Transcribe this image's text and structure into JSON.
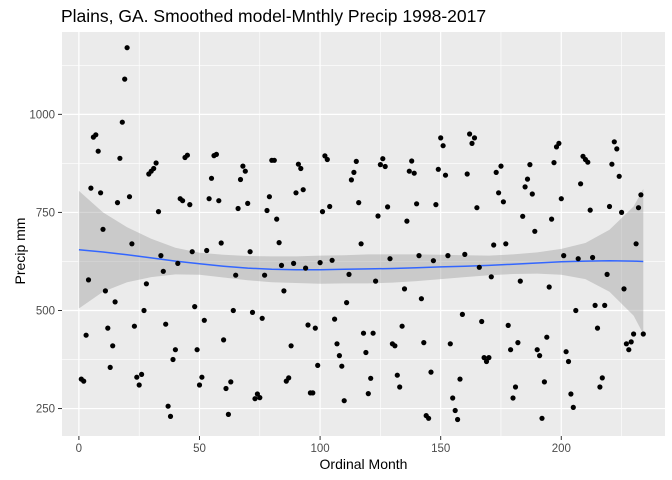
{
  "chart_data": {
    "type": "scatter",
    "title": "Plains, GA. Smoothed model-Mnthly Precip 1998-2017",
    "xlabel": "Ordinal Month",
    "ylabel": "Precip mm",
    "xlim": [
      -7,
      243
    ],
    "ylim": [
      180,
      1210
    ],
    "x_ticks": [
      0,
      50,
      100,
      150,
      200
    ],
    "y_ticks": [
      250,
      500,
      750,
      1000
    ],
    "x_tick_labels": [
      "0",
      "50",
      "100",
      "150",
      "200"
    ],
    "y_tick_labels": [
      "250",
      "500",
      "750",
      "1000"
    ],
    "grid": true,
    "colors": {
      "panel": "#ebebeb",
      "grid": "#ffffff",
      "points": "#000000",
      "smooth": "#3366ff",
      "ribbon": "#999999"
    },
    "points": [
      [
        1,
        325
      ],
      [
        2,
        320
      ],
      [
        3,
        437
      ],
      [
        4,
        578
      ],
      [
        5,
        812
      ],
      [
        6,
        942
      ],
      [
        7,
        948
      ],
      [
        8,
        906
      ],
      [
        9,
        800
      ],
      [
        10,
        707
      ],
      [
        11,
        550
      ],
      [
        12,
        455
      ],
      [
        13,
        355
      ],
      [
        14,
        410
      ],
      [
        15,
        522
      ],
      [
        16,
        775
      ],
      [
        17,
        888
      ],
      [
        18,
        980
      ],
      [
        19,
        1090
      ],
      [
        20,
        1170
      ],
      [
        21,
        790
      ],
      [
        22,
        670
      ],
      [
        23,
        460
      ],
      [
        24,
        330
      ],
      [
        25,
        310
      ],
      [
        26,
        337
      ],
      [
        27,
        500
      ],
      [
        28,
        568
      ],
      [
        29,
        848
      ],
      [
        30,
        855
      ],
      [
        31,
        862
      ],
      [
        32,
        876
      ],
      [
        33,
        752
      ],
      [
        34,
        640
      ],
      [
        35,
        600
      ],
      [
        36,
        465
      ],
      [
        37,
        256
      ],
      [
        38,
        230
      ],
      [
        39,
        375
      ],
      [
        40,
        400
      ],
      [
        41,
        620
      ],
      [
        42,
        785
      ],
      [
        43,
        780
      ],
      [
        44,
        890
      ],
      [
        45,
        896
      ],
      [
        46,
        770
      ],
      [
        47,
        650
      ],
      [
        48,
        510
      ],
      [
        49,
        400
      ],
      [
        50,
        310
      ],
      [
        51,
        330
      ],
      [
        52,
        475
      ],
      [
        53,
        653
      ],
      [
        54,
        785
      ],
      [
        55,
        837
      ],
      [
        56,
        895
      ],
      [
        57,
        898
      ],
      [
        58,
        780
      ],
      [
        59,
        672
      ],
      [
        60,
        425
      ],
      [
        61,
        301
      ],
      [
        62,
        235
      ],
      [
        63,
        318
      ],
      [
        64,
        500
      ],
      [
        65,
        590
      ],
      [
        66,
        760
      ],
      [
        67,
        834
      ],
      [
        68,
        868
      ],
      [
        69,
        855
      ],
      [
        70,
        773
      ],
      [
        71,
        650
      ],
      [
        72,
        495
      ],
      [
        73,
        275
      ],
      [
        74,
        287
      ],
      [
        75,
        278
      ],
      [
        76,
        480
      ],
      [
        77,
        590
      ],
      [
        78,
        755
      ],
      [
        79,
        790
      ],
      [
        80,
        883
      ],
      [
        81,
        883
      ],
      [
        82,
        733
      ],
      [
        83,
        673
      ],
      [
        84,
        615
      ],
      [
        85,
        550
      ],
      [
        86,
        320
      ],
      [
        87,
        328
      ],
      [
        88,
        410
      ],
      [
        89,
        620
      ],
      [
        90,
        800
      ],
      [
        91,
        873
      ],
      [
        92,
        862
      ],
      [
        93,
        808
      ],
      [
        94,
        608
      ],
      [
        95,
        463
      ],
      [
        96,
        290
      ],
      [
        97,
        290
      ],
      [
        98,
        455
      ],
      [
        99,
        360
      ],
      [
        100,
        622
      ],
      [
        101,
        752
      ],
      [
        102,
        894
      ],
      [
        103,
        885
      ],
      [
        104,
        765
      ],
      [
        105,
        628
      ],
      [
        106,
        478
      ],
      [
        107,
        415
      ],
      [
        108,
        385
      ],
      [
        109,
        358
      ],
      [
        110,
        270
      ],
      [
        111,
        520
      ],
      [
        112,
        592
      ],
      [
        113,
        833
      ],
      [
        114,
        852
      ],
      [
        115,
        880
      ],
      [
        116,
        775
      ],
      [
        117,
        670
      ],
      [
        118,
        442
      ],
      [
        119,
        393
      ],
      [
        120,
        288
      ],
      [
        121,
        327
      ],
      [
        122,
        442
      ],
      [
        123,
        575
      ],
      [
        124,
        741
      ],
      [
        125,
        872
      ],
      [
        126,
        887
      ],
      [
        127,
        867
      ],
      [
        128,
        764
      ],
      [
        129,
        632
      ],
      [
        130,
        415
      ],
      [
        131,
        410
      ],
      [
        132,
        335
      ],
      [
        133,
        305
      ],
      [
        134,
        460
      ],
      [
        135,
        555
      ],
      [
        136,
        728
      ],
      [
        137,
        855
      ],
      [
        138,
        881
      ],
      [
        139,
        850
      ],
      [
        140,
        772
      ],
      [
        141,
        640
      ],
      [
        142,
        530
      ],
      [
        143,
        418
      ],
      [
        144,
        232
      ],
      [
        145,
        225
      ],
      [
        146,
        343
      ],
      [
        147,
        627
      ],
      [
        148,
        770
      ],
      [
        149,
        860
      ],
      [
        150,
        940
      ],
      [
        151,
        920
      ],
      [
        152,
        845
      ],
      [
        153,
        640
      ],
      [
        154,
        415
      ],
      [
        155,
        277
      ],
      [
        156,
        245
      ],
      [
        157,
        222
      ],
      [
        158,
        325
      ],
      [
        159,
        490
      ],
      [
        160,
        643
      ],
      [
        161,
        848
      ],
      [
        162,
        950
      ],
      [
        163,
        926
      ],
      [
        164,
        940
      ],
      [
        165,
        762
      ],
      [
        166,
        610
      ],
      [
        167,
        472
      ],
      [
        168,
        380
      ],
      [
        169,
        370
      ],
      [
        170,
        380
      ],
      [
        171,
        586
      ],
      [
        172,
        667
      ],
      [
        173,
        852
      ],
      [
        174,
        800
      ],
      [
        175,
        868
      ],
      [
        176,
        777
      ],
      [
        177,
        670
      ],
      [
        178,
        462
      ],
      [
        179,
        400
      ],
      [
        180,
        277
      ],
      [
        181,
        305
      ],
      [
        182,
        418
      ],
      [
        183,
        575
      ],
      [
        184,
        740
      ],
      [
        185,
        815
      ],
      [
        186,
        835
      ],
      [
        187,
        872
      ],
      [
        188,
        797
      ],
      [
        189,
        702
      ],
      [
        190,
        400
      ],
      [
        191,
        385
      ],
      [
        192,
        225
      ],
      [
        193,
        318
      ],
      [
        194,
        432
      ],
      [
        195,
        560
      ],
      [
        196,
        733
      ],
      [
        197,
        877
      ],
      [
        198,
        917
      ],
      [
        199,
        926
      ],
      [
        200,
        785
      ],
      [
        201,
        640
      ],
      [
        202,
        395
      ],
      [
        203,
        370
      ],
      [
        204,
        287
      ],
      [
        205,
        253
      ],
      [
        206,
        500
      ],
      [
        207,
        632
      ],
      [
        208,
        823
      ],
      [
        209,
        893
      ],
      [
        210,
        885
      ],
      [
        211,
        878
      ],
      [
        212,
        756
      ],
      [
        213,
        635
      ],
      [
        214,
        513
      ],
      [
        215,
        455
      ],
      [
        216,
        305
      ],
      [
        217,
        328
      ],
      [
        218,
        513
      ],
      [
        219,
        592
      ],
      [
        220,
        765
      ],
      [
        221,
        873
      ],
      [
        222,
        930
      ],
      [
        223,
        912
      ],
      [
        224,
        842
      ],
      [
        225,
        750
      ],
      [
        226,
        555
      ],
      [
        227,
        415
      ],
      [
        228,
        400
      ],
      [
        229,
        420
      ],
      [
        230,
        440
      ],
      [
        231,
        670
      ],
      [
        232,
        762
      ],
      [
        233,
        795
      ],
      [
        234,
        440
      ]
    ],
    "smooth_x": [
      0,
      10,
      20,
      30,
      40,
      50,
      60,
      70,
      80,
      90,
      100,
      110,
      120,
      130,
      140,
      150,
      160,
      170,
      180,
      190,
      200,
      210,
      220,
      230,
      234
    ],
    "smooth_y": [
      655,
      649,
      642,
      634,
      626,
      619,
      613,
      608,
      605,
      604,
      604,
      605,
      606,
      607,
      609,
      611,
      613,
      615,
      618,
      621,
      624,
      626,
      627,
      626,
      625
    ],
    "ci_upper": [
      805,
      750,
      712,
      683,
      660,
      647,
      642,
      639,
      638,
      638,
      640,
      641,
      643,
      643,
      643,
      642,
      641,
      640,
      643,
      648,
      657,
      672,
      706,
      765,
      810
    ],
    "ci_lower": [
      505,
      548,
      572,
      585,
      592,
      591,
      584,
      577,
      572,
      570,
      568,
      569,
      569,
      571,
      575,
      580,
      585,
      590,
      593,
      594,
      591,
      580,
      548,
      487,
      440
    ]
  }
}
